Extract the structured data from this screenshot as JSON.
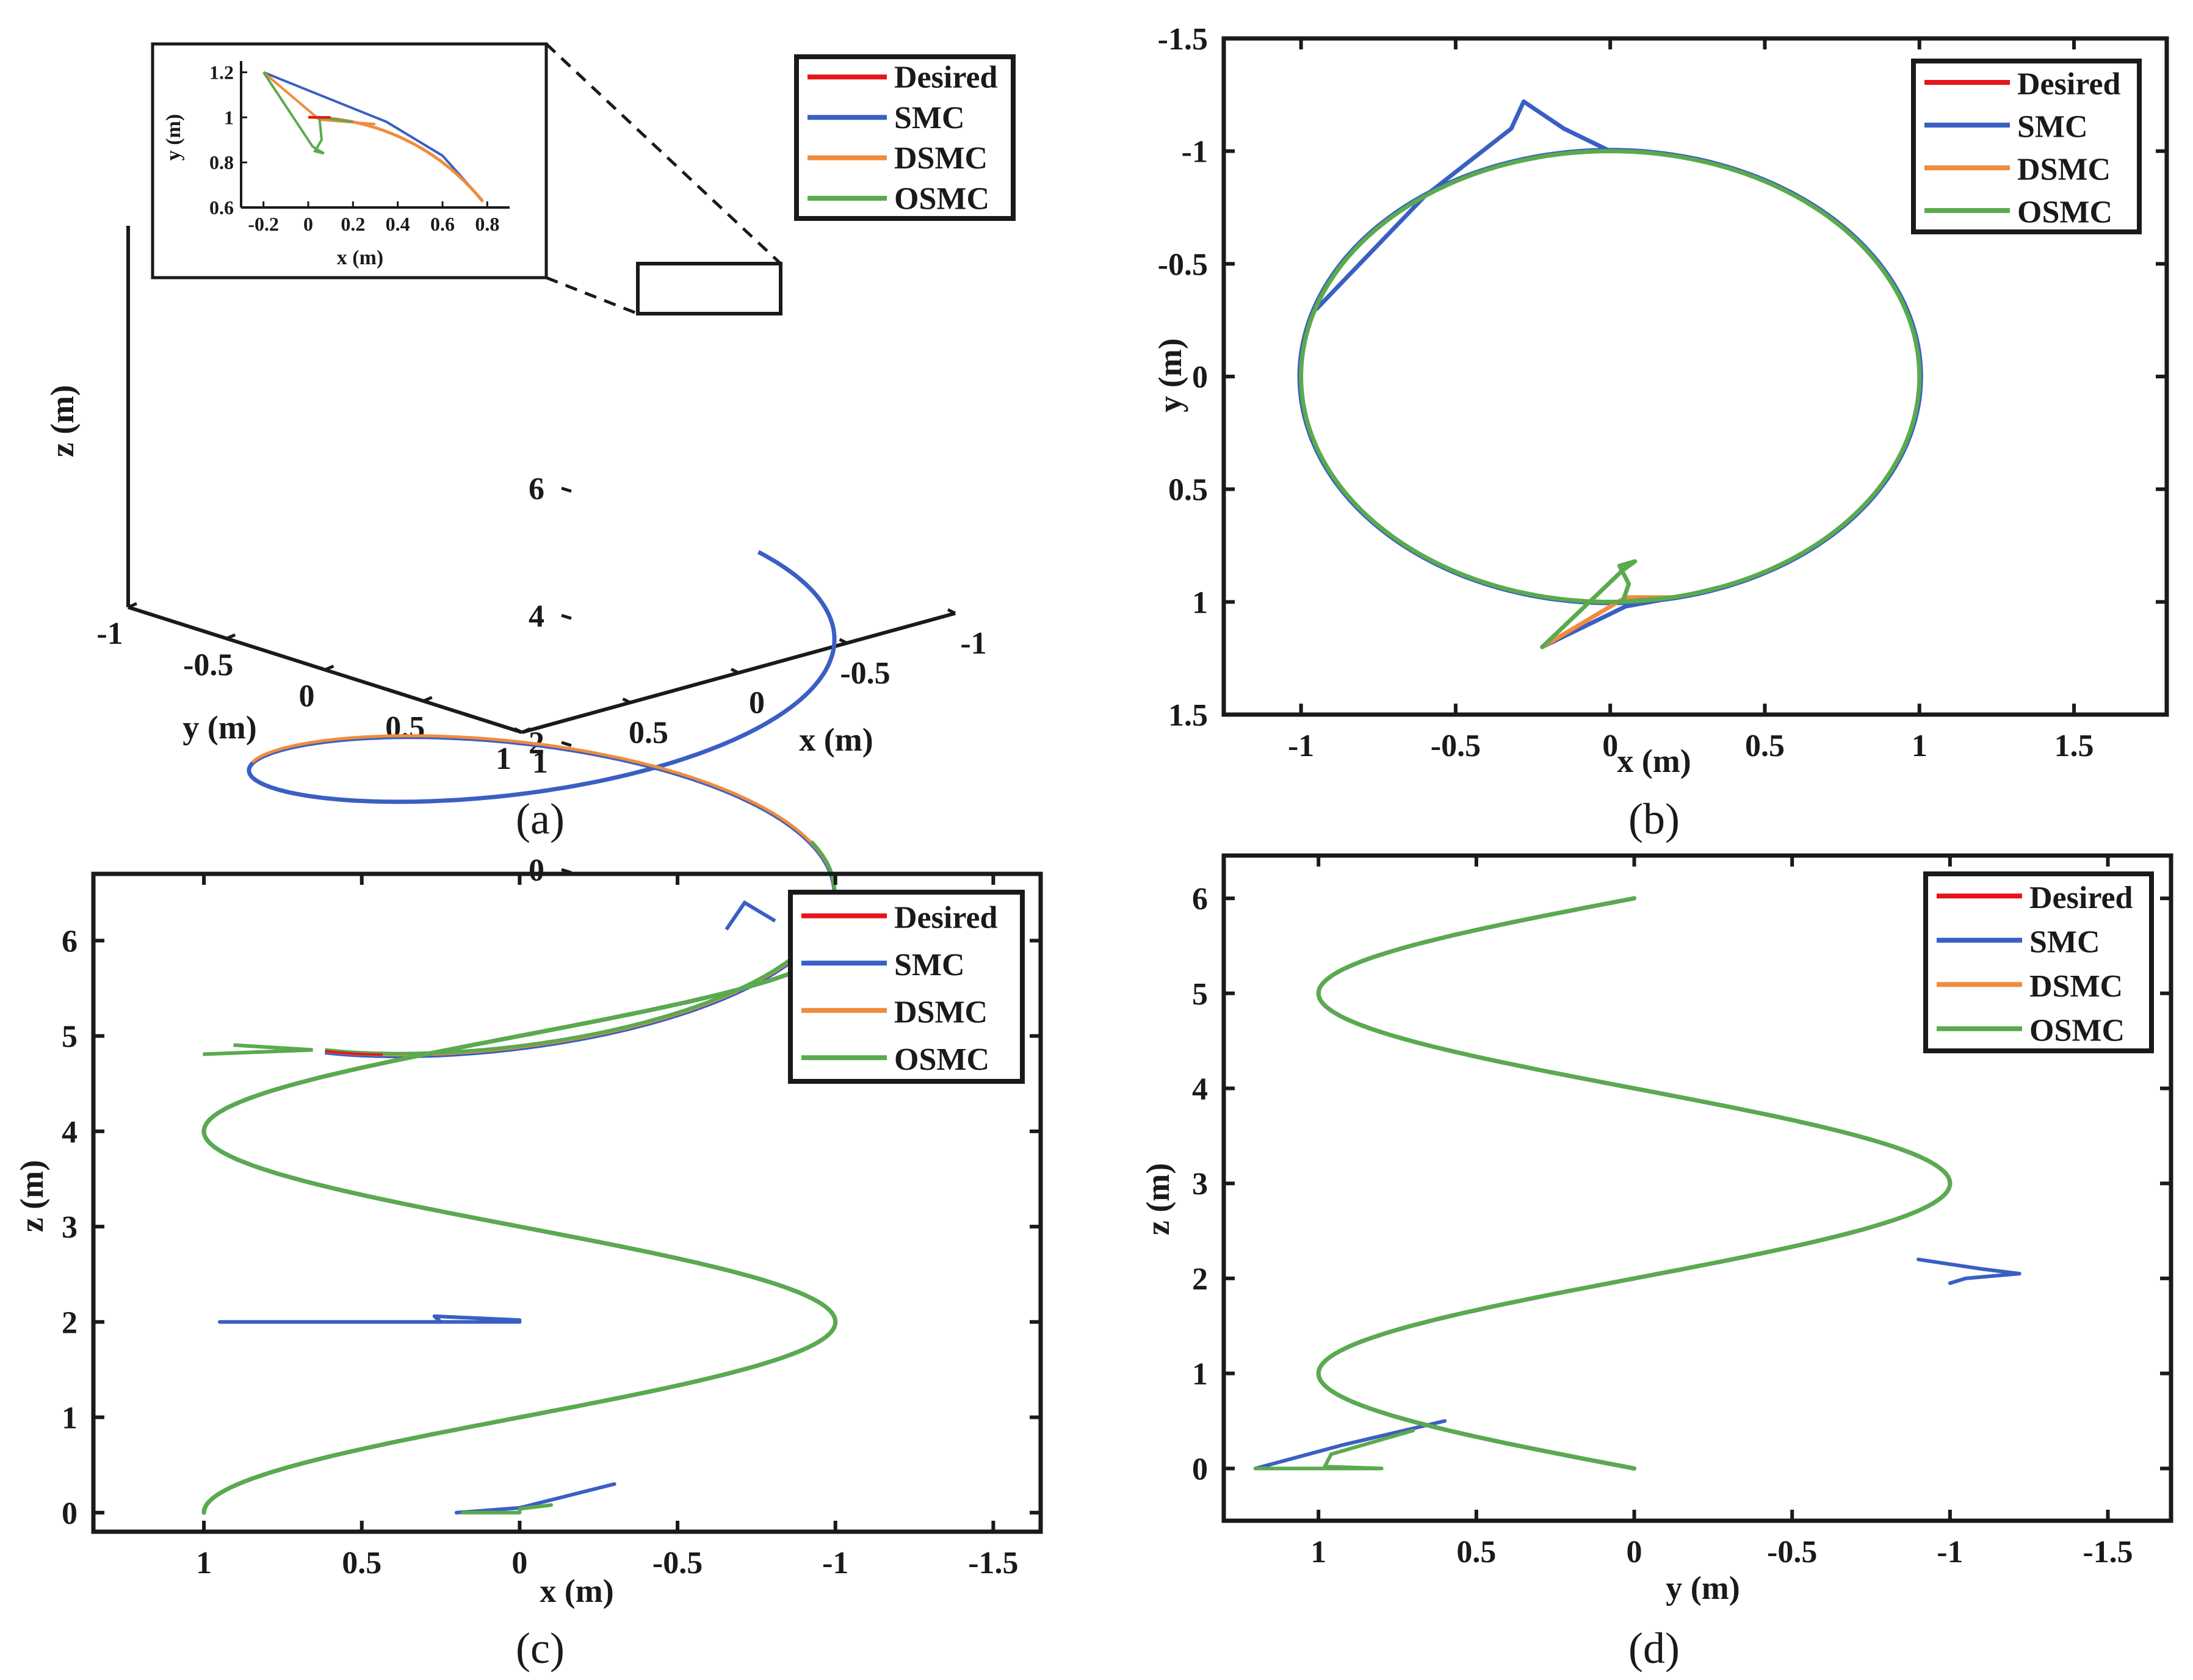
{
  "colors": {
    "desired": "#e8141c",
    "smc": "#3a5fc4",
    "dsmc": "#f08c3c",
    "osmc": "#5aaa4e",
    "axis": "#1a1a1a"
  },
  "legend_labels": [
    "Desired",
    "SMC",
    "DSMC",
    "OSMC"
  ],
  "chart_data": [
    {
      "id": "a",
      "caption": "(a)",
      "type": "line-3d",
      "title": "",
      "xlabel": "x (m)",
      "ylabel": "y (m)",
      "zlabel": "z (m)",
      "x_ticks": [
        "-1",
        "-0.5",
        "0",
        "0.5",
        "1"
      ],
      "y_ticks": [
        "-1",
        "-0.5",
        "0",
        "0.5",
        "1"
      ],
      "z_ticks": [
        "0",
        "2",
        "4",
        "6"
      ],
      "trajectory": "helix x=cos(pi*z/2), y=sin(pi*z/2), z from 0 to 6 m",
      "legend": [
        "Desired",
        "SMC",
        "DSMC",
        "OSMC"
      ],
      "legend_position": "top-right",
      "inset": {
        "xlabel": "x (m)",
        "ylabel": "y (m)",
        "x_ticks": [
          "-0.2",
          "0",
          "0.2",
          "0.4",
          "0.6",
          "0.8"
        ],
        "y_ticks": [
          "0.6",
          "0.8",
          "1",
          "1.2"
        ],
        "xlim": [
          -0.3,
          0.9
        ],
        "ylim": [
          0.6,
          1.25
        ]
      }
    },
    {
      "id": "b",
      "caption": "(b)",
      "type": "line",
      "title": "",
      "xlabel": "x (m)",
      "ylabel": "y (m)",
      "xlim": [
        -1.25,
        1.8
      ],
      "ylim": [
        -1.5,
        1.5
      ],
      "x_ticks": [
        "-1",
        "-0.5",
        "0",
        "0.5",
        "1",
        "1.5"
      ],
      "y_ticks": [
        "-1.5",
        "-1",
        "-0.5",
        "0",
        "0.5",
        "1",
        "1.5"
      ],
      "series": [
        {
          "name": "Desired",
          "description": "unit circle x^2+y^2=1"
        },
        {
          "name": "SMC",
          "extra_points": [
            [
              -0.22,
              1.2
            ],
            [
              0.05,
              1.02
            ],
            [
              -0.28,
              -1.22
            ],
            [
              0.0,
              -1.0
            ]
          ]
        },
        {
          "name": "DSMC",
          "extra_points": [
            [
              -0.22,
              1.2
            ],
            [
              0.05,
              0.98
            ]
          ]
        },
        {
          "name": "OSMC",
          "extra_points": [
            [
              -0.22,
              1.2
            ],
            [
              0.06,
              0.83
            ]
          ]
        }
      ],
      "legend": [
        "Desired",
        "SMC",
        "DSMC",
        "OSMC"
      ],
      "legend_position": "top-right"
    },
    {
      "id": "c",
      "caption": "(c)",
      "type": "line",
      "title": "",
      "xlabel": "x (m)",
      "ylabel": "z (m)",
      "xlim": [
        1.35,
        -1.65
      ],
      "ylim": [
        6.7,
        -0.2
      ],
      "x_ticks": [
        "1",
        "0.5",
        "0",
        "-0.5",
        "-1",
        "-1.5"
      ],
      "y_ticks": [
        "0",
        "1",
        "2",
        "3",
        "4",
        "5",
        "6"
      ],
      "series": [
        {
          "name": "Desired",
          "description": "x = cos(pi*z/2), z 0..6"
        },
        {
          "name": "SMC",
          "extra_points": [
            [
              0.2,
              0.0
            ],
            [
              0.27,
              2.02
            ],
            [
              0.0,
              2.0
            ]
          ]
        },
        {
          "name": "DSMC"
        },
        {
          "name": "OSMC",
          "extra_points": [
            [
              0.18,
              0.0
            ],
            [
              0.0,
              0.02
            ]
          ]
        }
      ],
      "legend": [
        "Desired",
        "SMC",
        "DSMC",
        "OSMC"
      ],
      "legend_position": "top-right"
    },
    {
      "id": "d",
      "caption": "(d)",
      "type": "line",
      "title": "",
      "xlabel": "y (m)",
      "ylabel": "z (m)",
      "xlim": [
        1.3,
        -1.7
      ],
      "ylim": [
        6.45,
        -0.55
      ],
      "x_ticks": [
        "1",
        "0.5",
        "0",
        "-0.5",
        "-1",
        "-1.5"
      ],
      "y_ticks": [
        "0",
        "1",
        "2",
        "3",
        "4",
        "5",
        "6"
      ],
      "series": [
        {
          "name": "Desired",
          "description": "y = sin(pi*z/2), z 0..6"
        },
        {
          "name": "SMC",
          "extra_points": [
            [
              1.2,
              0.0
            ],
            [
              -1.22,
              2.05
            ],
            [
              -1.0,
              2.0
            ]
          ]
        },
        {
          "name": "DSMC"
        },
        {
          "name": "OSMC",
          "extra_points": [
            [
              1.2,
              0.0
            ],
            [
              0.8,
              0.02
            ]
          ]
        }
      ],
      "legend": [
        "Desired",
        "SMC",
        "DSMC",
        "OSMC"
      ],
      "legend_position": "top-right"
    }
  ]
}
